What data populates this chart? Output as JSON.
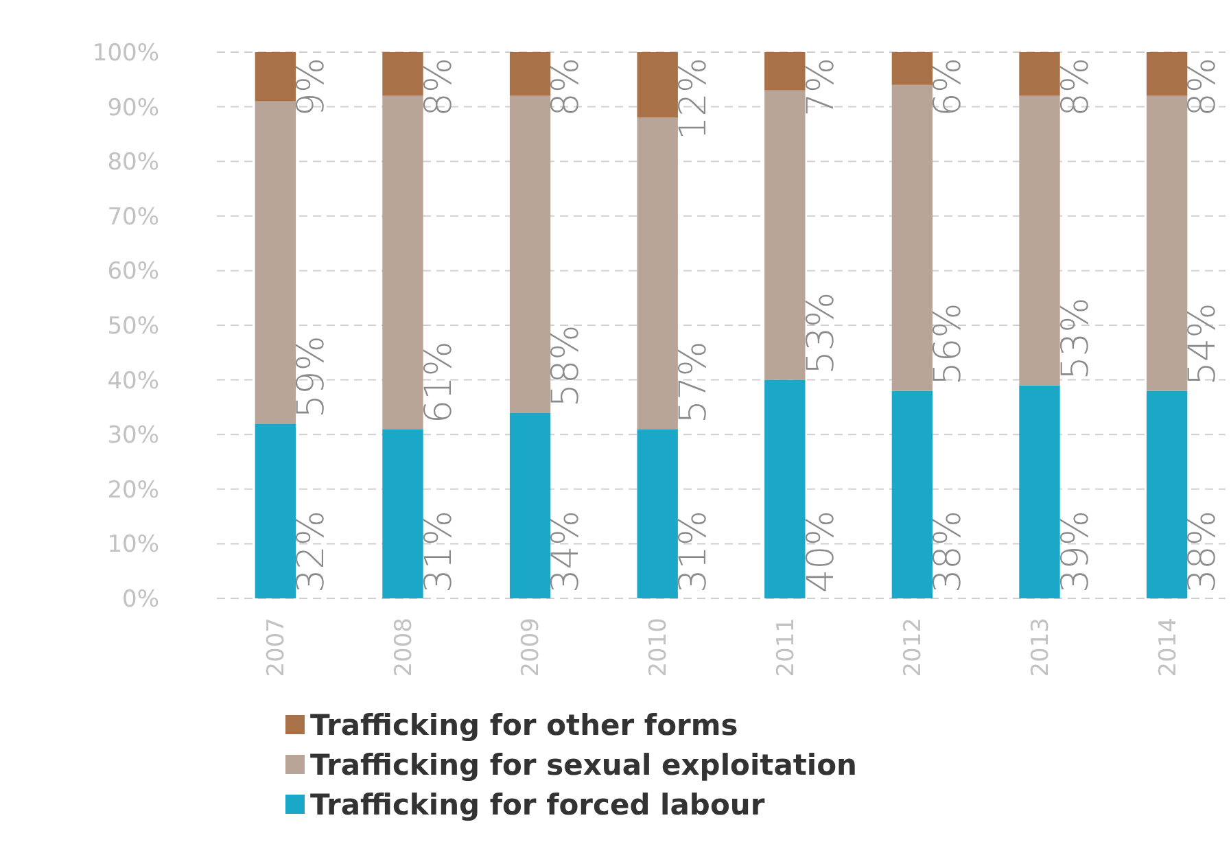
{
  "chart_data": {
    "type": "bar",
    "stacked": true,
    "categories": [
      "2007",
      "2008",
      "2009",
      "2010",
      "2011",
      "2012",
      "2013",
      "2014"
    ],
    "series": [
      {
        "name": "Trafficking for forced labour",
        "color": "#1ba8c8",
        "values": [
          32,
          31,
          34,
          31,
          40,
          38,
          39,
          38
        ],
        "value_labels": [
          "32%",
          "31%",
          "34%",
          "31%",
          "40%",
          "38%",
          "39%",
          "38%"
        ]
      },
      {
        "name": "Trafficking for sexual exploitation",
        "color": "#b8a597",
        "values": [
          59,
          61,
          58,
          57,
          53,
          56,
          53,
          54
        ],
        "value_labels": [
          "59%",
          "61%",
          "58%",
          "57%",
          "53%",
          "56%",
          "53%",
          "54%"
        ]
      },
      {
        "name": "Trafficking for other forms",
        "color": "#a87148",
        "values": [
          9,
          8,
          8,
          12,
          7,
          6,
          8,
          8
        ],
        "value_labels": [
          "9%",
          "8%",
          "8%",
          "12%",
          "7%",
          "6%",
          "8%",
          "8%"
        ]
      }
    ],
    "ylim": [
      0,
      100
    ],
    "yticks": [
      {
        "value": 0,
        "label": "0%"
      },
      {
        "value": 10,
        "label": "10%"
      },
      {
        "value": 20,
        "label": "20%"
      },
      {
        "value": 30,
        "label": "30%"
      },
      {
        "value": 40,
        "label": "40%"
      },
      {
        "value": 50,
        "label": "50%"
      },
      {
        "value": 60,
        "label": "60%"
      },
      {
        "value": 70,
        "label": "70%"
      },
      {
        "value": 80,
        "label": "80%"
      },
      {
        "value": 90,
        "label": "90%"
      },
      {
        "value": 100,
        "label": "100%"
      }
    ],
    "grid": "y",
    "legend": "bottom"
  }
}
